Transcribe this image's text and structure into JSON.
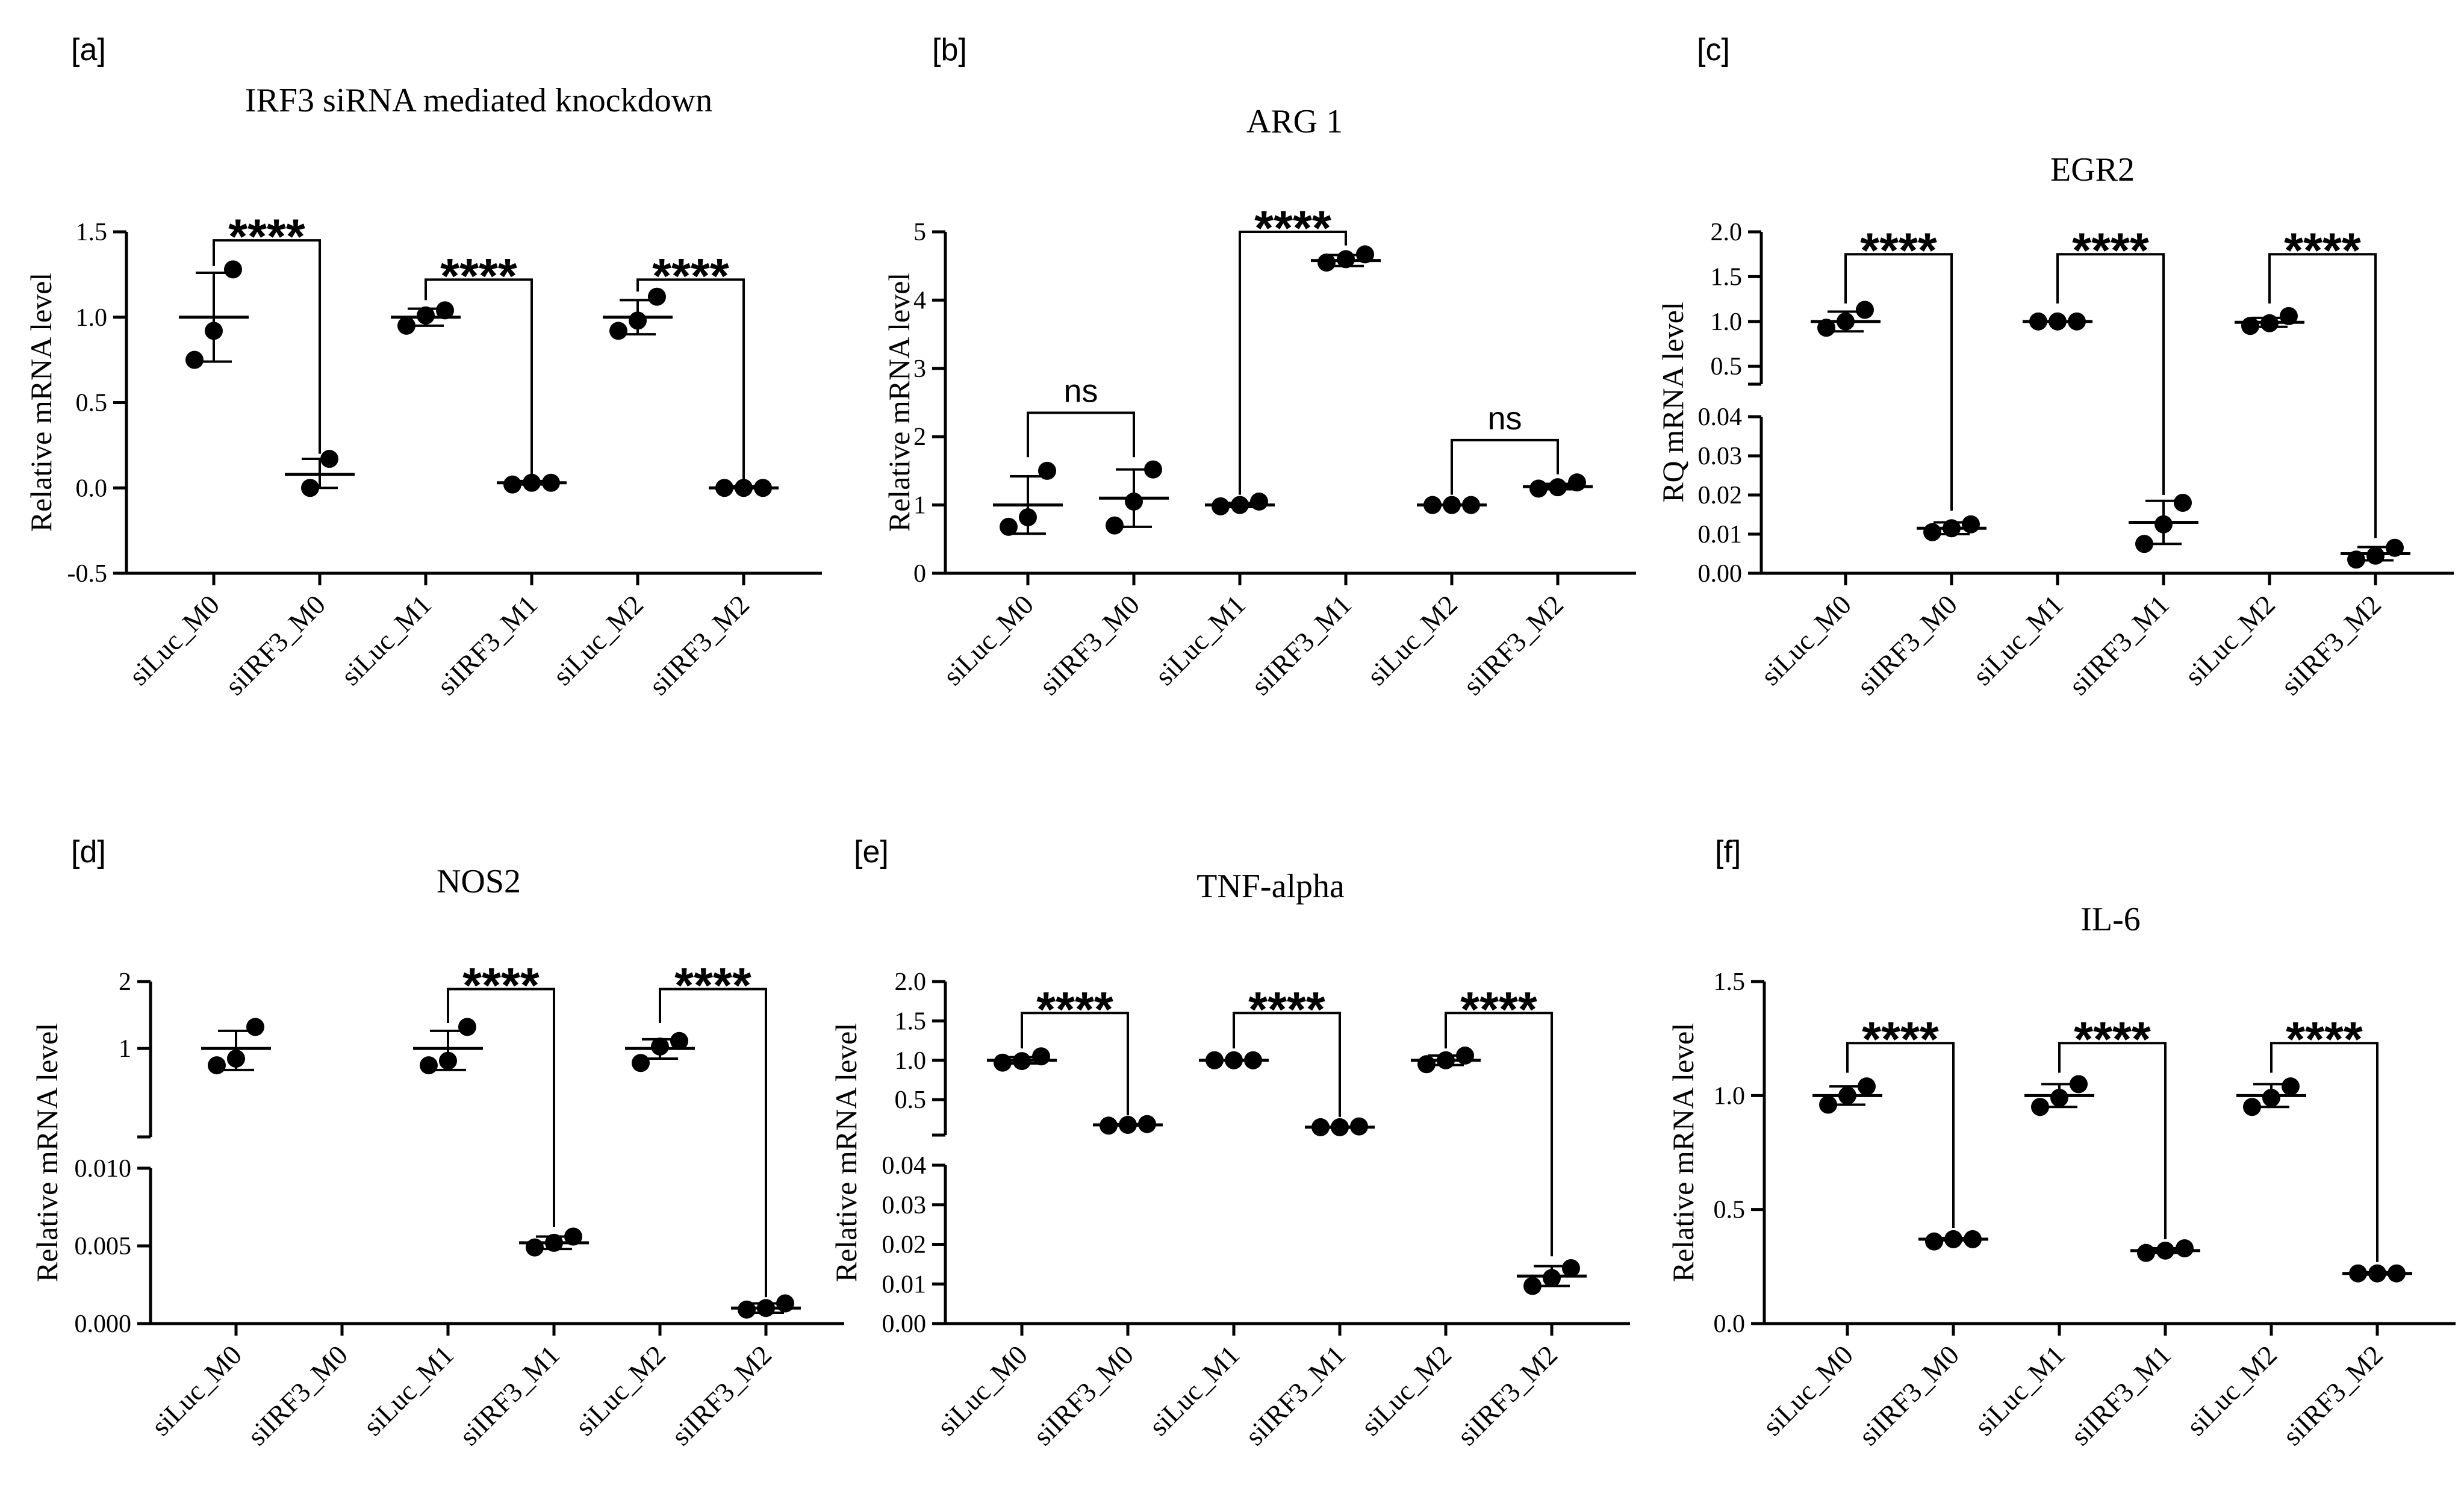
{
  "chart_data": [
    {
      "panel_id": "a",
      "panel_label": "[a]",
      "type": "scatter",
      "title": "IRF3 siRNA mediated knockdown",
      "ylabel": "Relative mRNA level",
      "categories": [
        "siLuc_M0",
        "siIRF3_M0",
        "siLuc_M1",
        "siIRF3_M1",
        "siLuc_M2",
        "siIRF3_M2"
      ],
      "axis": {
        "segments": [
          {
            "min": -0.5,
            "max": 1.5,
            "ticks": [
              -0.5,
              0.0,
              0.5,
              1.0,
              1.5
            ],
            "tick_labels": [
              "-0.5",
              "0.0",
              "0.5",
              "1.0",
              "1.5"
            ]
          }
        ]
      },
      "groups": [
        {
          "points": [
            0.75,
            0.92,
            1.28
          ],
          "mean": 1.0,
          "sd": 0.26
        },
        {
          "points": [
            0.0,
            0.17
          ],
          "mean": 0.08,
          "sd": 0.09
        },
        {
          "points": [
            0.95,
            1.01,
            1.04
          ],
          "mean": 1.0,
          "sd": 0.05
        },
        {
          "points": [
            0.02,
            0.03,
            0.03
          ],
          "mean": 0.03,
          "sd": 0.01
        },
        {
          "points": [
            0.92,
            0.98,
            1.12
          ],
          "mean": 1.0,
          "sd": 0.1
        },
        {
          "points": [
            0.0,
            0.0,
            0.0
          ],
          "mean": 0.0,
          "sd": 0.01
        }
      ],
      "comparisons": [
        {
          "from": 0,
          "to": 1,
          "label": "****",
          "left_top": 1.3,
          "right_top": 0.2,
          "bar": 1.45
        },
        {
          "from": 2,
          "to": 3,
          "label": "****",
          "left_top": 1.1,
          "right_top": 0.08,
          "bar": 1.22
        },
        {
          "from": 4,
          "to": 5,
          "label": "****",
          "left_top": 1.15,
          "right_top": 0.05,
          "bar": 1.22
        }
      ]
    },
    {
      "panel_id": "b",
      "panel_label": "[b]",
      "type": "scatter",
      "title": "ARG 1",
      "ylabel": "Relative mRNA level",
      "categories": [
        "siLuc_M0",
        "siIRF3_M0",
        "siLuc_M1",
        "siIRF3_M1",
        "siLuc_M2",
        "siIRF3_M2"
      ],
      "axis": {
        "segments": [
          {
            "min": 0,
            "max": 5,
            "ticks": [
              0,
              1,
              2,
              3,
              4,
              5
            ],
            "tick_labels": [
              "0",
              "1",
              "2",
              "3",
              "4",
              "5"
            ]
          }
        ]
      },
      "groups": [
        {
          "points": [
            0.68,
            0.82,
            1.5
          ],
          "mean": 1.0,
          "sd": 0.42
        },
        {
          "points": [
            0.7,
            1.05,
            1.52
          ],
          "mean": 1.1,
          "sd": 0.42
        },
        {
          "points": [
            0.98,
            1.0,
            1.05
          ],
          "mean": 1.0,
          "sd": 0.03
        },
        {
          "points": [
            4.55,
            4.6,
            4.67
          ],
          "mean": 4.58,
          "sd": 0.08
        },
        {
          "points": [
            1.0,
            1.0,
            1.0
          ],
          "mean": 1.0,
          "sd": 0.0
        },
        {
          "points": [
            1.24,
            1.26,
            1.33
          ],
          "mean": 1.27,
          "sd": 0.04
        }
      ],
      "comparisons": [
        {
          "from": 0,
          "to": 1,
          "label": "ns",
          "left_top": 1.7,
          "right_top": 1.7,
          "bar": 2.35
        },
        {
          "from": 2,
          "to": 3,
          "label": "****",
          "left_top": 1.15,
          "right_top": 4.8,
          "bar": 5.0
        },
        {
          "from": 4,
          "to": 5,
          "label": "ns",
          "left_top": 1.15,
          "right_top": 1.45,
          "bar": 1.95
        }
      ]
    },
    {
      "panel_id": "c",
      "panel_label": "[c]",
      "type": "scatter",
      "title": "EGR2",
      "ylabel": "RQ mRNA level",
      "categories": [
        "siLuc_M0",
        "siIRF3_M0",
        "siLuc_M1",
        "siIRF3_M1",
        "siLuc_M2",
        "siIRF3_M2"
      ],
      "axis": {
        "segments": [
          {
            "min": 0,
            "max": 0.04,
            "ticks": [
              0.0,
              0.01,
              0.02,
              0.03,
              0.04
            ],
            "tick_labels": [
              "0.00",
              "0.01",
              "0.02",
              "0.03",
              "0.04"
            ]
          },
          {
            "min": 0.3,
            "max": 2.0,
            "ticks": [
              0.5,
              1.0,
              1.5,
              2.0
            ],
            "tick_labels": [
              "0.5",
              "1.0",
              "1.5",
              "2.0"
            ]
          }
        ]
      },
      "groups": [
        {
          "points": [
            0.93,
            1.0,
            1.13
          ],
          "mean": 1.0,
          "sd": 0.11
        },
        {
          "points": [
            0.0105,
            0.0115,
            0.0125
          ],
          "mean": 0.0115,
          "sd": 0.0015
        },
        {
          "points": [
            1.0,
            1.0,
            1.0
          ],
          "mean": 1.0,
          "sd": 0.0
        },
        {
          "points": [
            0.0075,
            0.0125,
            0.018
          ],
          "mean": 0.013,
          "sd": 0.0055
        },
        {
          "points": [
            0.95,
            0.98,
            1.06
          ],
          "mean": 0.99,
          "sd": 0.05
        },
        {
          "points": [
            0.0035,
            0.0045,
            0.0065
          ],
          "mean": 0.005,
          "sd": 0.0017
        }
      ],
      "comparisons": [
        {
          "from": 0,
          "to": 1,
          "label": "****",
          "left_top": 1.2,
          "right_top": 0.016,
          "bar": 1.75
        },
        {
          "from": 2,
          "to": 3,
          "label": "****",
          "left_top": 1.2,
          "right_top": 0.02,
          "bar": 1.75
        },
        {
          "from": 4,
          "to": 5,
          "label": "****",
          "left_top": 1.2,
          "right_top": 0.009,
          "bar": 1.75
        }
      ]
    },
    {
      "panel_id": "d",
      "panel_label": "[d]",
      "type": "scatter",
      "title": "NOS2",
      "ylabel": "Relative mRNA level",
      "categories": [
        "siLuc_M0",
        "siIRF3_M0",
        "siLuc_M1",
        "siIRF3_M1",
        "siLuc_M2",
        "siIRF3_M2"
      ],
      "axis": {
        "segments": [
          {
            "min": 0,
            "max": 0.01,
            "ticks": [
              0.0,
              0.005,
              0.01
            ],
            "tick_labels": [
              "0.000",
              "0.005",
              "0.010"
            ]
          },
          {
            "min": 0.4,
            "max": 2.0,
            "ticks": [
              1,
              2
            ],
            "tick_labels": [
              "1",
              "2"
            ],
            "scale": "log"
          }
        ]
      },
      "groups": [
        {
          "points": [
            0.84,
            0.9,
            1.25
          ],
          "mean": 1.0,
          "sd": 0.2
        },
        {
          "points": [],
          "mean": null,
          "sd": null
        },
        {
          "points": [
            0.84,
            0.88,
            1.25
          ],
          "mean": 1.0,
          "sd": 0.2
        },
        {
          "points": [
            0.0049,
            0.0052,
            0.0056
          ],
          "mean": 0.0052,
          "sd": 0.0004
        },
        {
          "points": [
            0.86,
            1.02,
            1.08
          ],
          "mean": 1.0,
          "sd": 0.1
        },
        {
          "points": [
            0.0009,
            0.001,
            0.0013
          ],
          "mean": 0.001,
          "sd": 0.0003
        }
      ],
      "comparisons": [
        {
          "from": 2,
          "to": 3,
          "label": "****",
          "left_top": 1.3,
          "right_top": 0.0062,
          "bar": 1.85
        },
        {
          "from": 4,
          "to": 5,
          "label": "****",
          "left_top": 1.3,
          "right_top": 0.0017,
          "bar": 1.85
        }
      ]
    },
    {
      "panel_id": "e",
      "panel_label": "[e]",
      "type": "scatter",
      "title": "TNF-alpha",
      "ylabel": "Relative mRNA level",
      "categories": [
        "siLuc_M0",
        "siIRF3_M0",
        "siLuc_M1",
        "siIRF3_M1",
        "siLuc_M2",
        "siIRF3_M2"
      ],
      "axis": {
        "segments": [
          {
            "min": 0,
            "max": 0.04,
            "ticks": [
              0.0,
              0.01,
              0.02,
              0.03,
              0.04
            ],
            "tick_labels": [
              "0.00",
              "0.01",
              "0.02",
              "0.03",
              "0.04"
            ]
          },
          {
            "min": 0.05,
            "max": 2.0,
            "ticks": [
              0.5,
              1.0,
              1.5,
              2.0
            ],
            "tick_labels": [
              "0.5",
              "1.0",
              "1.5",
              "2.0"
            ]
          }
        ]
      },
      "groups": [
        {
          "points": [
            0.97,
            0.99,
            1.05
          ],
          "mean": 1.0,
          "sd": 0.04
        },
        {
          "points": [
            0.17,
            0.18,
            0.19
          ],
          "mean": 0.18,
          "sd": 0.01
        },
        {
          "points": [
            1.0,
            1.0,
            1.0
          ],
          "mean": 1.0,
          "sd": 0.0
        },
        {
          "points": [
            0.15,
            0.15,
            0.16
          ],
          "mean": 0.15,
          "sd": 0.005
        },
        {
          "points": [
            0.95,
            1.0,
            1.06
          ],
          "mean": 1.0,
          "sd": 0.06
        },
        {
          "points": [
            0.0095,
            0.0115,
            0.014
          ],
          "mean": 0.012,
          "sd": 0.0025
        }
      ],
      "comparisons": [
        {
          "from": 0,
          "to": 1,
          "label": "****",
          "left_top": 1.15,
          "right_top": 0.3,
          "bar": 1.6
        },
        {
          "from": 2,
          "to": 3,
          "label": "****",
          "left_top": 1.15,
          "right_top": 0.28,
          "bar": 1.6
        },
        {
          "from": 4,
          "to": 5,
          "label": "****",
          "left_top": 1.15,
          "right_top": 0.017,
          "bar": 1.6
        }
      ]
    },
    {
      "panel_id": "f",
      "panel_label": "[f]",
      "type": "scatter",
      "title": "IL-6",
      "ylabel": "Relative mRNA level",
      "categories": [
        "siLuc_M0",
        "siIRF3_M0",
        "siLuc_M1",
        "siIRF3_M1",
        "siLuc_M2",
        "siIRF3_M2"
      ],
      "axis": {
        "segments": [
          {
            "min": 0,
            "max": 1.5,
            "ticks": [
              0.0,
              0.5,
              1.0,
              1.5
            ],
            "tick_labels": [
              "0.0",
              "0.5",
              "1.0",
              "1.5"
            ]
          }
        ]
      },
      "groups": [
        {
          "points": [
            0.96,
            1.0,
            1.04
          ],
          "mean": 1.0,
          "sd": 0.04
        },
        {
          "points": [
            0.36,
            0.37,
            0.37
          ],
          "mean": 0.37,
          "sd": 0.005
        },
        {
          "points": [
            0.95,
            0.99,
            1.05
          ],
          "mean": 1.0,
          "sd": 0.05
        },
        {
          "points": [
            0.31,
            0.32,
            0.33
          ],
          "mean": 0.32,
          "sd": 0.01
        },
        {
          "points": [
            0.95,
            0.99,
            1.04
          ],
          "mean": 1.0,
          "sd": 0.05
        },
        {
          "points": [
            0.22,
            0.22,
            0.22
          ],
          "mean": 0.22,
          "sd": 0.005
        }
      ],
      "comparisons": [
        {
          "from": 0,
          "to": 1,
          "label": "****",
          "left_top": 1.1,
          "right_top": 0.42,
          "bar": 1.23
        },
        {
          "from": 2,
          "to": 3,
          "label": "****",
          "left_top": 1.1,
          "right_top": 0.37,
          "bar": 1.23
        },
        {
          "from": 4,
          "to": 5,
          "label": "****",
          "left_top": 1.1,
          "right_top": 0.27,
          "bar": 1.23
        }
      ]
    }
  ]
}
